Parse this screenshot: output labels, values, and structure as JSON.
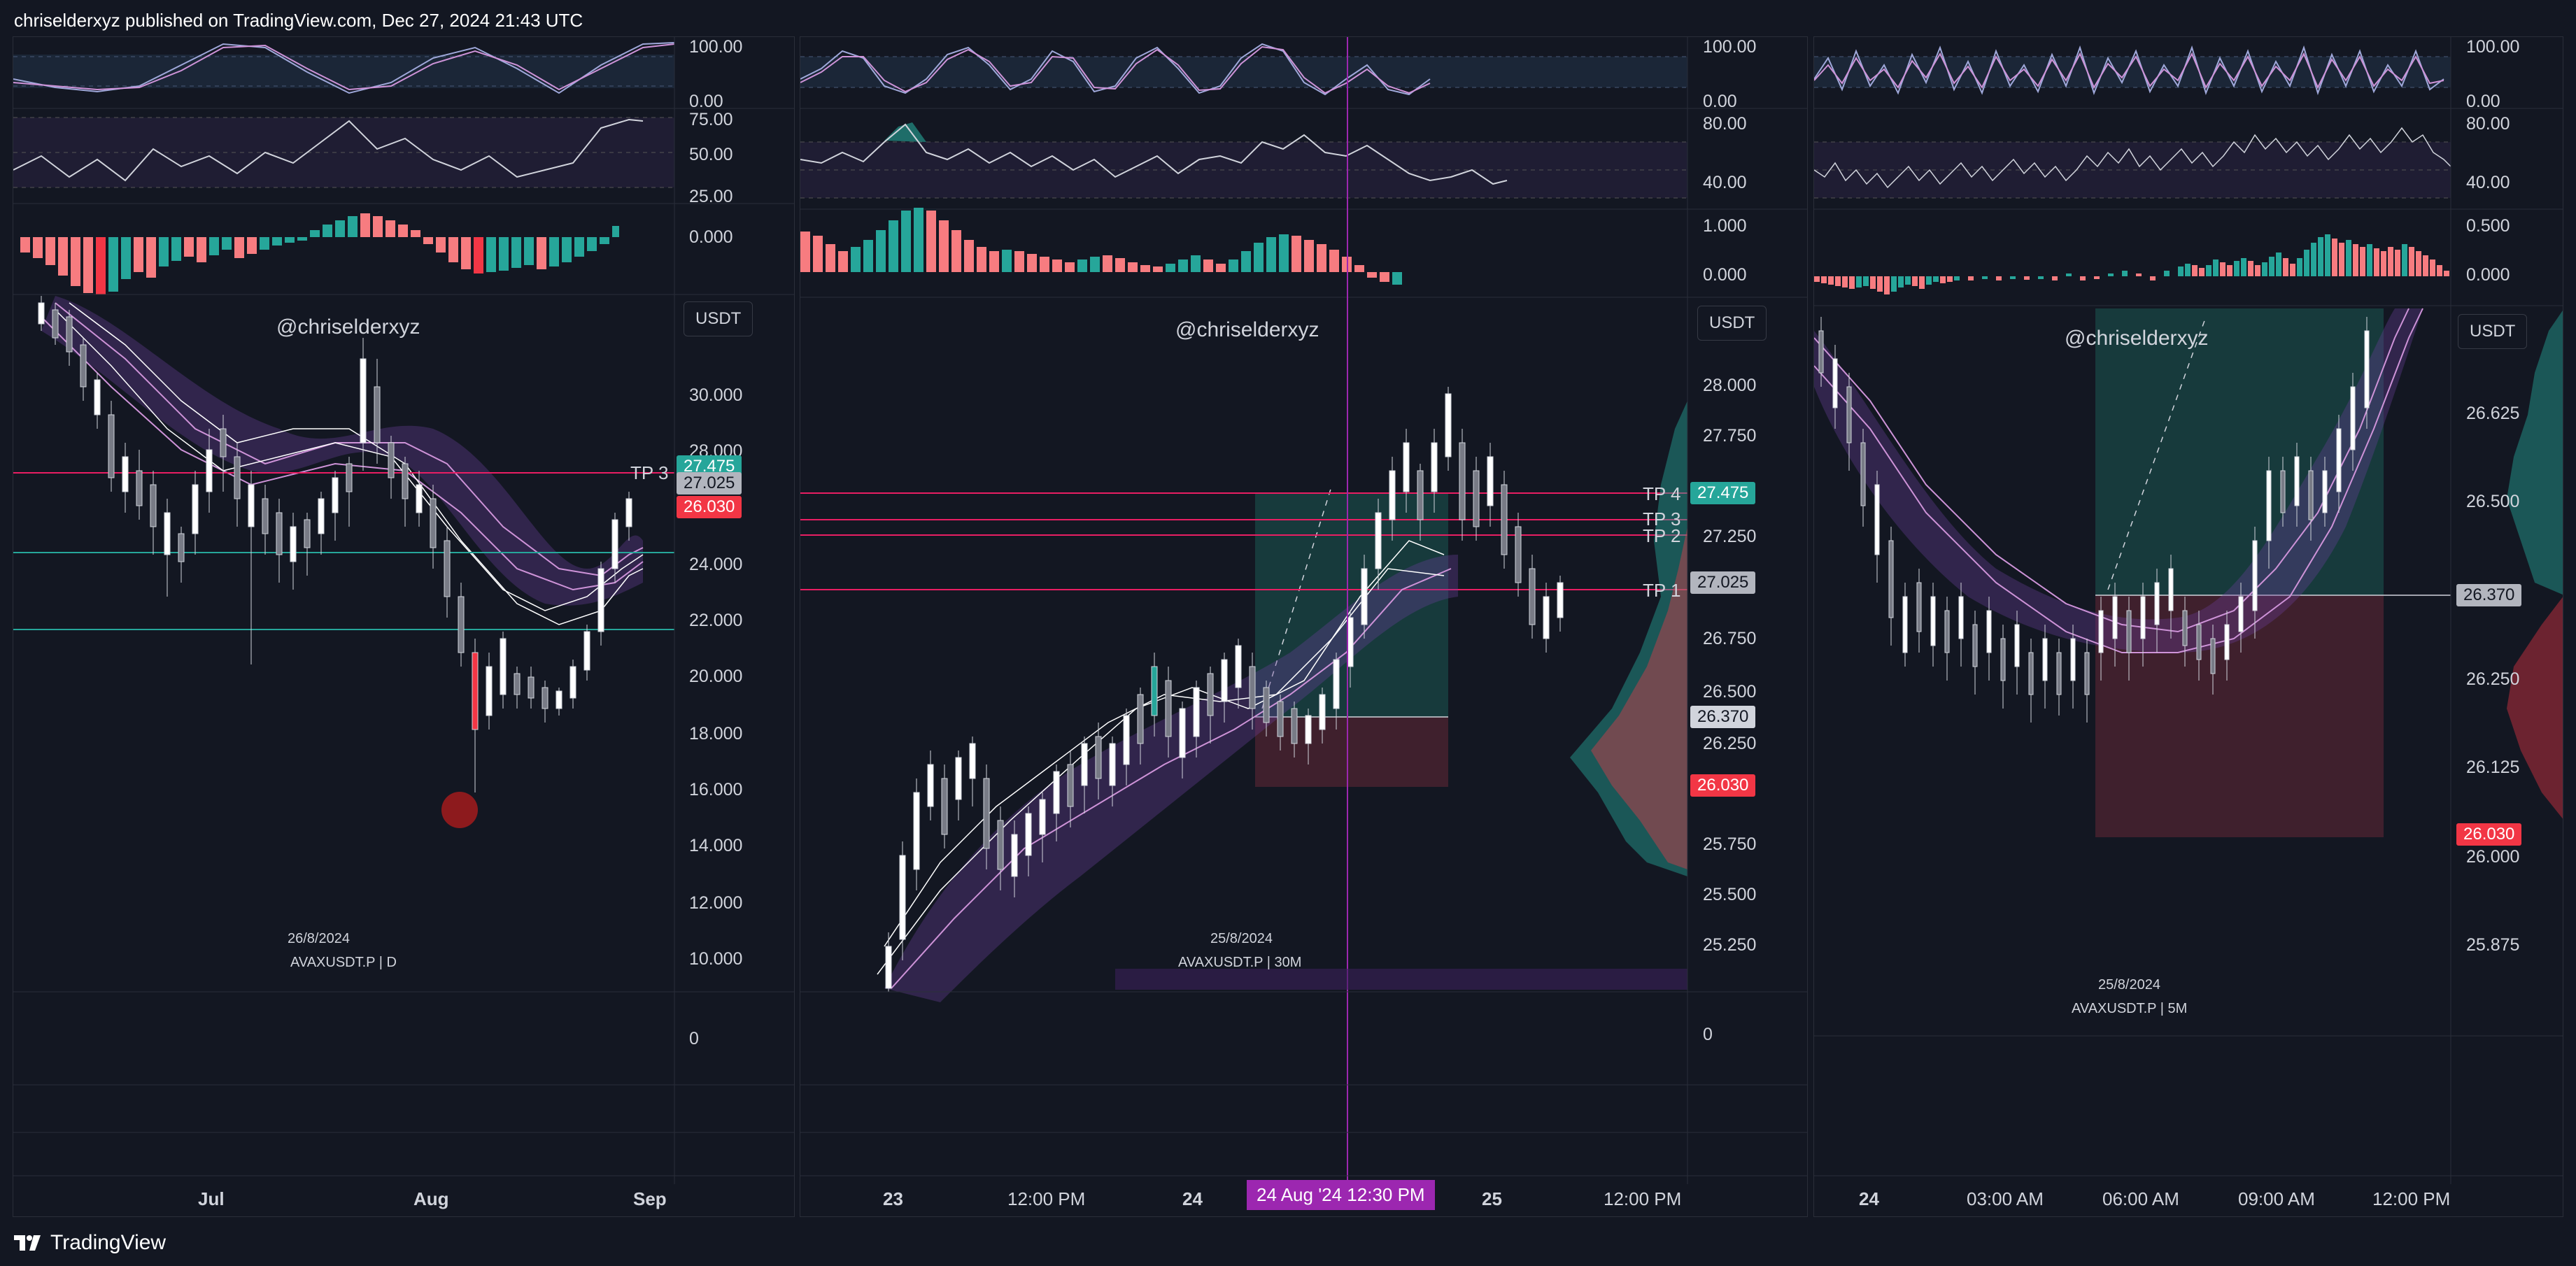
{
  "header": {
    "published": "chriselderxyz published on TradingView.com, Dec 27, 2024 21:43 UTC"
  },
  "footer": {
    "brand": "TradingView"
  },
  "colors": {
    "bg": "#131722",
    "up": "#26a69a",
    "down": "#f23645",
    "tp": "#e91e63",
    "ma": "#ce93d8",
    "cross": "#9c27b0"
  },
  "panels": [
    {
      "watermark": "@chriselderxyz",
      "currency": "USDT",
      "date": "26/8/2024",
      "symbol": "AVAXUSDT.P | D",
      "osc1_ticks": [
        "100.00",
        "0.00"
      ],
      "osc2_ticks": [
        "75.00",
        "50.00",
        "25.00"
      ],
      "osc3_ticks": [
        "0.000"
      ],
      "price_ticks": [
        "30.000",
        "28.000",
        "24.000",
        "22.000",
        "20.000",
        "18.000",
        "16.000",
        "14.000",
        "12.000",
        "10.000"
      ],
      "vol_tick": "0",
      "tp_labels": [
        "TP 3"
      ],
      "price_tags": [
        "27.475",
        "27.025",
        "26.030"
      ],
      "time_ticks": [
        "Jul",
        "Aug",
        "Sep"
      ]
    },
    {
      "watermark": "@chriselderxyz",
      "currency": "USDT",
      "date": "25/8/2024",
      "symbol": "AVAXUSDT.P | 30M",
      "osc1_ticks": [
        "100.00",
        "0.00"
      ],
      "osc2_ticks": [
        "80.00",
        "40.00"
      ],
      "osc3_ticks": [
        "1.000",
        "0.000"
      ],
      "price_ticks": [
        "28.000",
        "27.750",
        "27.250",
        "26.750",
        "26.500",
        "26.250",
        "25.750",
        "25.500",
        "25.250"
      ],
      "vol_tick": "0",
      "tp_labels": [
        "TP 4",
        "TP 3",
        "TP 2",
        "TP 1"
      ],
      "price_tags": [
        "27.475",
        "27.025",
        "26.370",
        "26.030"
      ],
      "time_ticks": [
        "23",
        "12:00 PM",
        "24",
        "25",
        "12:00 PM"
      ],
      "crosshair_time": "24 Aug '24   12:30 PM"
    },
    {
      "watermark": "@chriselderxyz",
      "currency": "USDT",
      "date": "25/8/2024",
      "symbol": "AVAXUSDT.P | 5M",
      "osc1_ticks": [
        "100.00",
        "0.00"
      ],
      "osc2_ticks": [
        "80.00",
        "40.00"
      ],
      "osc3_ticks": [
        "0.500",
        "0.000"
      ],
      "price_ticks": [
        "26.625",
        "26.500",
        "26.250",
        "26.125",
        "26.000",
        "25.875"
      ],
      "price_tags": [
        "26.370",
        "26.030"
      ],
      "time_ticks": [
        "24",
        "03:00 AM",
        "06:00 AM",
        "09:00 AM",
        "12:00 PM"
      ]
    }
  ]
}
